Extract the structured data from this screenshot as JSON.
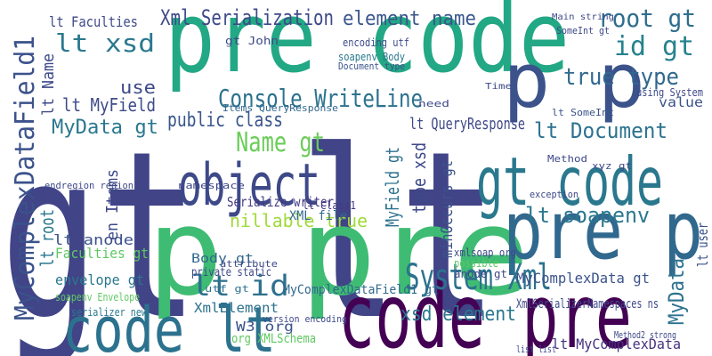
{
  "words": [
    "gt lt",
    "pre code",
    "p pre",
    "code pre",
    "pre p",
    "gt code",
    "p p",
    "code lt",
    "object",
    "System Xml",
    "Xml Serialization",
    "element name",
    "root gt",
    "id gt",
    "true type",
    "lt xsd",
    "Console WriteLine",
    "public class",
    "lt MyField",
    "MyData gt",
    "use",
    "Name gt",
    "lt QueryResponse",
    "lt Document",
    "lt soapenv",
    "lt id",
    "MyComplexDataField1",
    "Serialize writer",
    "nillable true",
    "MyComplexData gt",
    "lt MyComplexData",
    "xsd element",
    "MyComplexDataField1 gt",
    "XmlSerializerNamespaces ns",
    "envelope gt",
    "Faculties gt",
    "lt anode",
    "Body gt",
    "XmlElement",
    "W3 org",
    "xmlsoap org",
    "lt Faculties",
    "en Items",
    "MyField gt",
    "minOccurs gt",
    "type xsd",
    "lt root",
    "lt Name",
    "MyData",
    "lt user",
    "soapenv Envelope",
    "serializer new",
    "XML file",
    "private static",
    "value",
    "Method2 strong",
    "using System",
    "lt Class1",
    "encoding utf",
    "gt John",
    "soapenv Body",
    "Document type",
    "Items QueryResponse",
    "Time",
    "need",
    "lt SomeInt",
    "SomeInt gt",
    "Main string",
    "anode gt",
    "possible",
    "org XMLSchema",
    "version encoding",
    "utf gt",
    "list list",
    "namespace",
    "endregion region",
    "exception",
    "Method",
    "xyz gt",
    "attribute"
  ]
}
